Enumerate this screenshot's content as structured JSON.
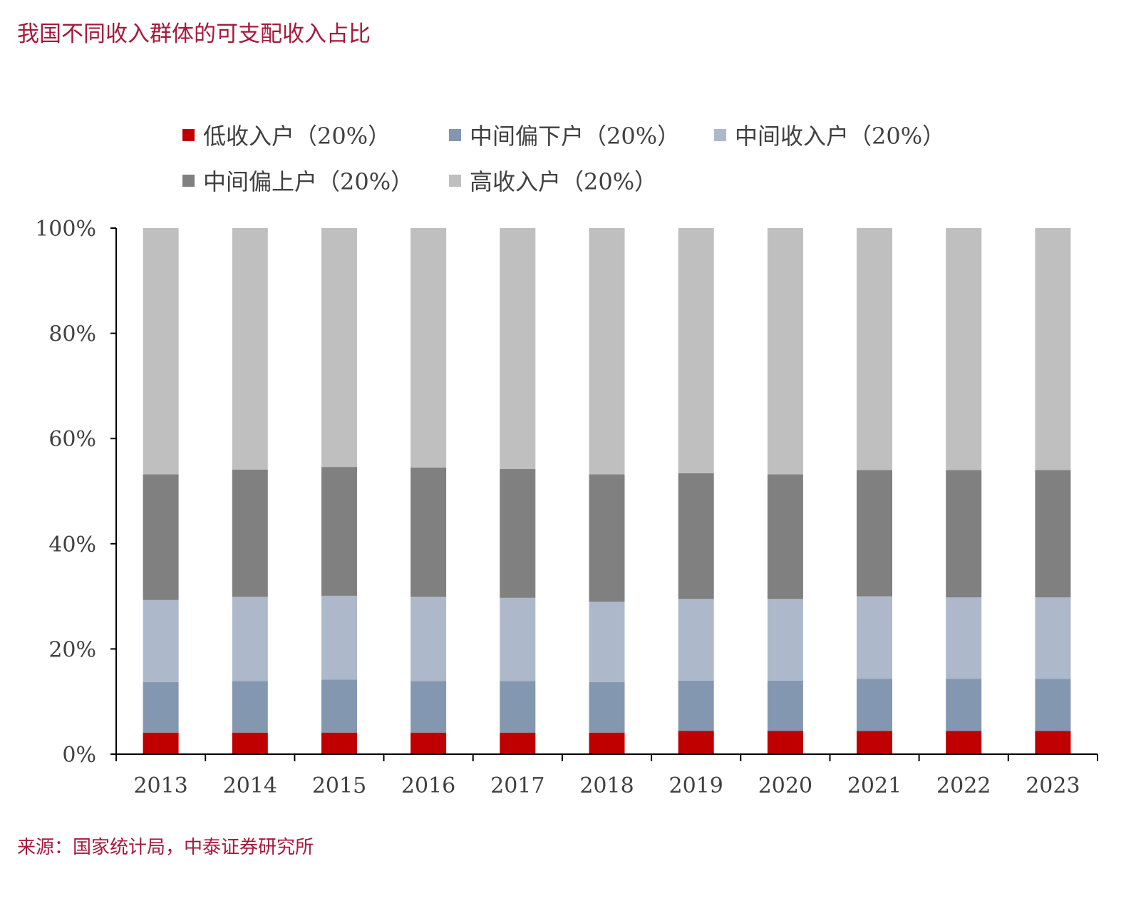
{
  "title": "我国不同收入群体的可支配收入占比",
  "source": "来源：国家统计局，中泰证券研究所",
  "colors": {
    "low": "#c00000",
    "lower_middle": "#8497b0",
    "middle": "#adb9ca",
    "upper_middle": "#808080",
    "high": "#bfbfbf",
    "axis": "#000000",
    "title": "#a6193c"
  },
  "chart_data": {
    "type": "bar",
    "stacked": true,
    "title": "",
    "xlabel": "",
    "ylabel": "",
    "ylim": [
      0,
      100
    ],
    "yticks": [
      "0%",
      "20%",
      "40%",
      "60%",
      "80%",
      "100%"
    ],
    "grid": false,
    "legend_position": "top",
    "categories": [
      "2013",
      "2014",
      "2015",
      "2016",
      "2017",
      "2018",
      "2019",
      "2020",
      "2021",
      "2022",
      "2023"
    ],
    "series": [
      {
        "name": "低收入户（20%）",
        "color_key": "low",
        "values": [
          4.1,
          4.1,
          4.1,
          4.1,
          4.1,
          4.1,
          4.4,
          4.4,
          4.4,
          4.4,
          4.4
        ]
      },
      {
        "name": "中间偏下户（20%）",
        "color_key": "lower_middle",
        "values": [
          9.6,
          9.8,
          10.1,
          9.8,
          9.8,
          9.6,
          9.6,
          9.6,
          9.9,
          9.9,
          9.9
        ]
      },
      {
        "name": "中间收入户（20%）",
        "color_key": "middle",
        "values": [
          15.6,
          16.0,
          15.9,
          16.0,
          15.8,
          15.3,
          15.5,
          15.5,
          15.7,
          15.5,
          15.5
        ]
      },
      {
        "name": "中间偏上户（20%）",
        "color_key": "upper_middle",
        "values": [
          23.9,
          24.2,
          24.5,
          24.6,
          24.5,
          24.2,
          23.9,
          23.7,
          24.0,
          24.2,
          24.2
        ]
      },
      {
        "name": "高收入户（20%）",
        "color_key": "high",
        "values": [
          46.8,
          45.9,
          45.4,
          45.5,
          45.8,
          46.8,
          46.6,
          46.8,
          46.0,
          46.0,
          46.0
        ]
      }
    ]
  }
}
